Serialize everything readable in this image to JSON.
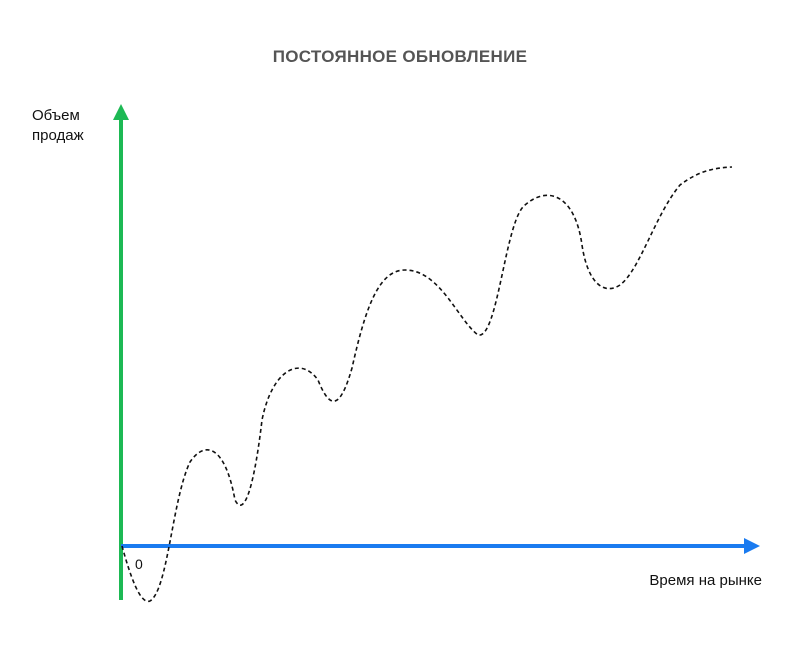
{
  "title": "ПОСТОЯННОЕ ОБНОВЛЕНИЕ",
  "y_axis": {
    "label_line1": "Объем",
    "label_line2": "продаж",
    "color": "#1DB954"
  },
  "x_axis": {
    "label": "Время на рынке",
    "color": "#1A7BF0"
  },
  "origin_label": "0",
  "curve": {
    "style": "dashed",
    "color": "#111111"
  }
}
